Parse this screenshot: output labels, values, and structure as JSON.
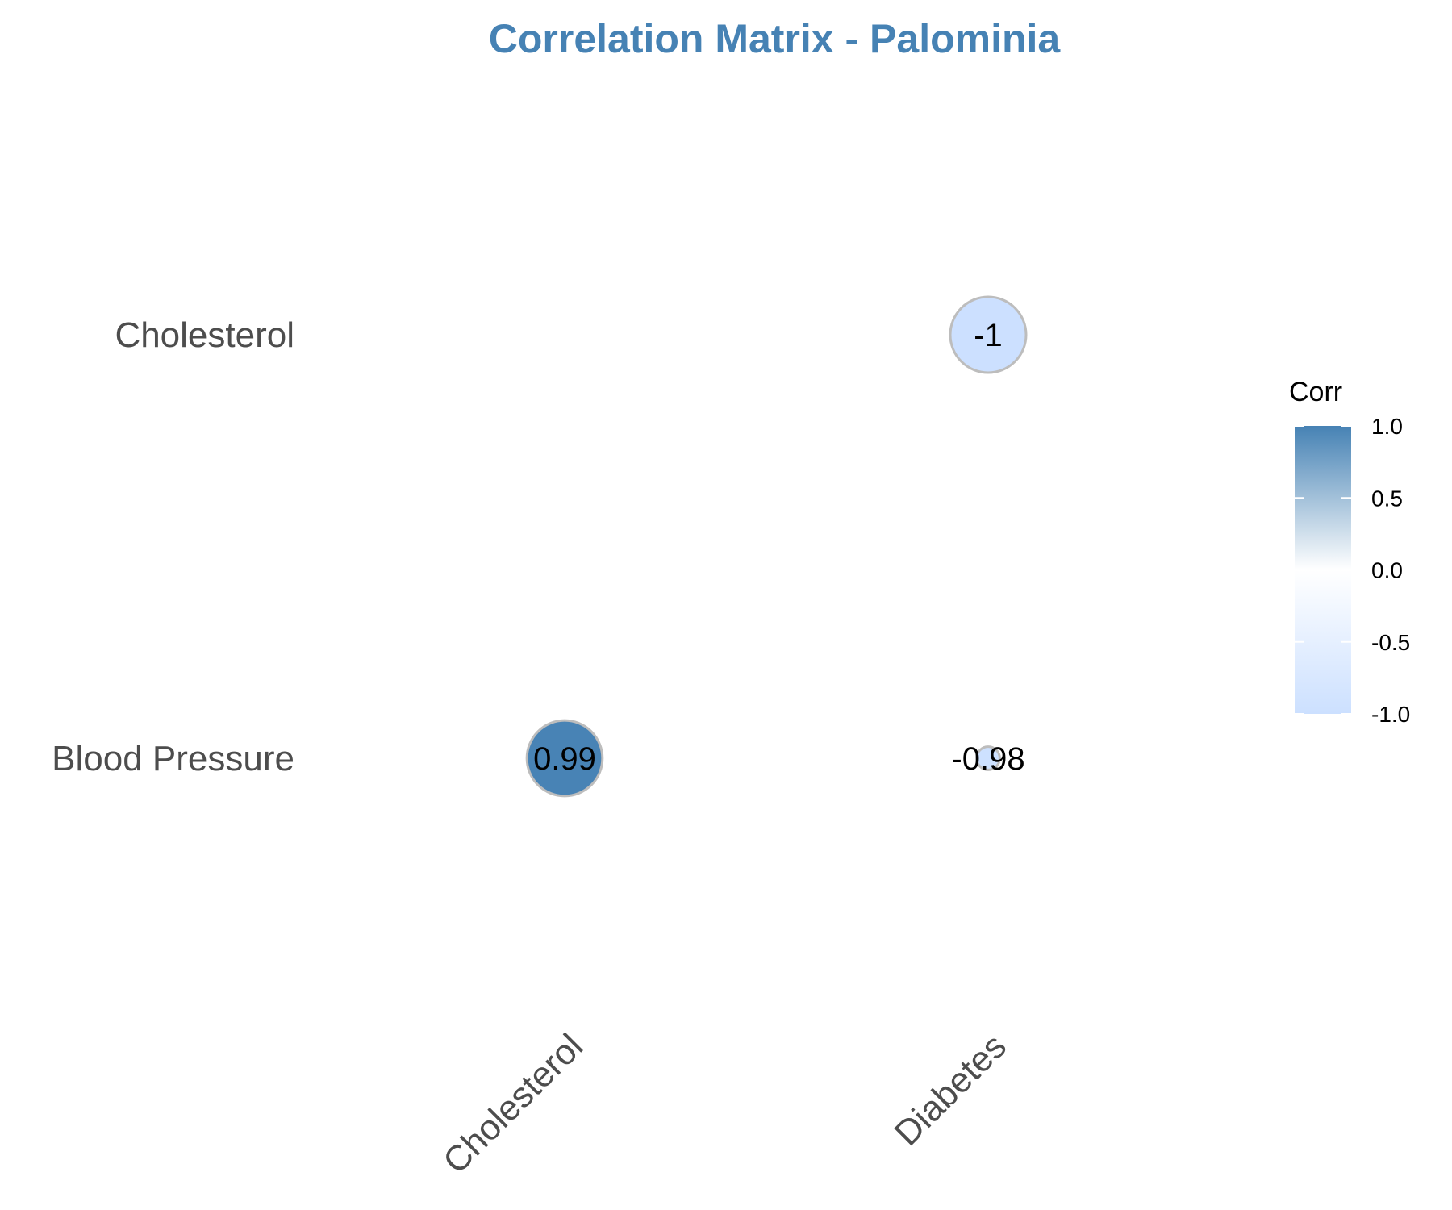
{
  "chart_data": {
    "type": "heatmap",
    "title": "Correlation Matrix - Palominia",
    "x_categories": [
      "Cholesterol",
      "Diabetes"
    ],
    "y_categories": [
      "Cholesterol",
      "Blood Pressure"
    ],
    "cells": [
      {
        "x": "Diabetes",
        "y": "Cholesterol",
        "value": -1,
        "label": "-1"
      },
      {
        "x": "Cholesterol",
        "y": "Blood Pressure",
        "value": 0.99,
        "label": "0.99"
      },
      {
        "x": "Diabetes",
        "y": "Blood Pressure",
        "value": -0.98,
        "label": "-0.98"
      }
    ],
    "legend": {
      "title": "Corr",
      "ticks": [
        "1.0",
        "0.5",
        "0.0",
        "-0.5",
        "-1.0"
      ],
      "tick_values": [
        1.0,
        0.5,
        0.0,
        -0.5,
        -1.0
      ],
      "range": [
        -1,
        1
      ],
      "placement": "right"
    },
    "colors": {
      "high": "#4682b4",
      "mid": "#ffffff",
      "low": "#cce0ff",
      "title": "#4682b4",
      "outline": "#bdbdbd"
    }
  }
}
